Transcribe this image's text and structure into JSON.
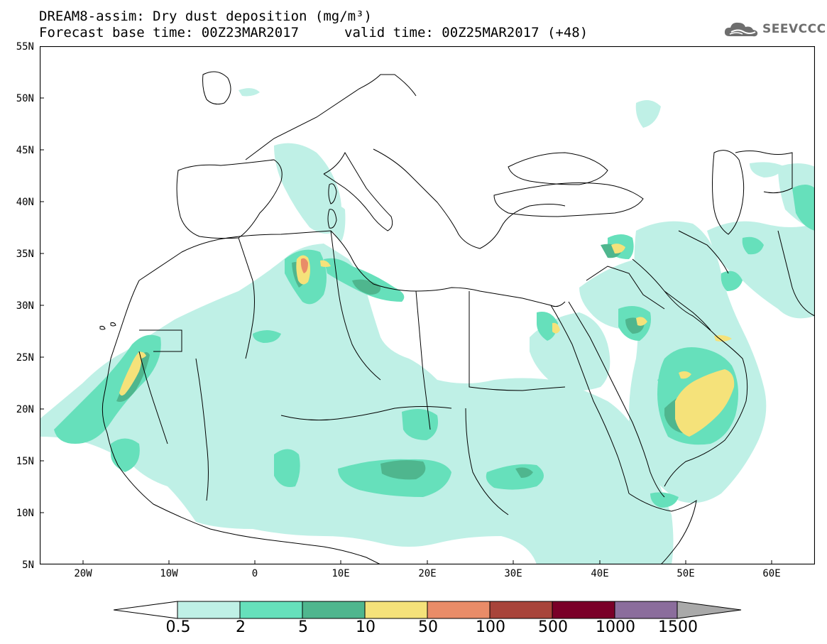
{
  "header": {
    "title_line1": "DREAM8-assim: Dry dust deposition (mg/m³)",
    "title_line2": "Forecast base time: 00Z23MAR2017",
    "valid_time": "valid time: 00Z25MAR2017 (+48)",
    "logo_text": "SEEVCCC",
    "logo_icon": "cloud-icon"
  },
  "map": {
    "projection": "lat-lon",
    "lon_range": [
      -25,
      65
    ],
    "lat_range": [
      5,
      55
    ],
    "lat_labels": [
      "55N",
      "50N",
      "45N",
      "40N",
      "35N",
      "30N",
      "25N",
      "20N",
      "15N",
      "10N",
      "5N"
    ],
    "lon_labels": [
      "20W",
      "10W",
      "0",
      "10E",
      "20E",
      "30E",
      "40E",
      "50E",
      "60E"
    ]
  },
  "legend": {
    "labels": [
      "0.5",
      "2",
      "5",
      "10",
      "50",
      "100",
      "500",
      "1000",
      "1500"
    ],
    "colors": [
      "#ffffff",
      "#bff0e6",
      "#66e0bb",
      "#4fb68e",
      "#f5e27a",
      "#e98c68",
      "#a8443a",
      "#7a0028",
      "#8b6d9c",
      "#a9a9a9"
    ]
  }
}
